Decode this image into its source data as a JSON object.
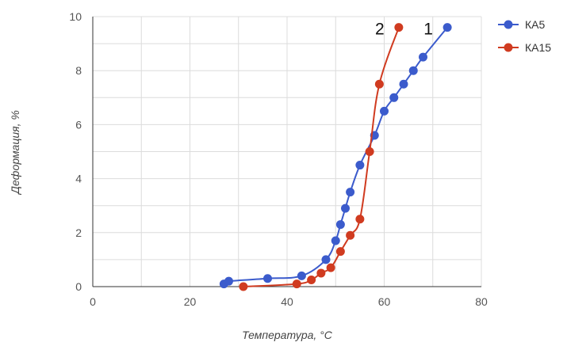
{
  "chart_data": {
    "type": "line",
    "xlabel": "Температура, °C",
    "ylabel": "Деформация, %",
    "xlim": [
      0,
      80
    ],
    "ylim": [
      0,
      10
    ],
    "xticks": [
      0,
      20,
      40,
      60,
      80
    ],
    "yticks": [
      0,
      2,
      4,
      6,
      8,
      10
    ],
    "grid": true,
    "legend_position": "top-right",
    "series": [
      {
        "name": "КА5",
        "color": "#3b5bcc",
        "annotation": "1",
        "points": [
          [
            27,
            0.1
          ],
          [
            28,
            0.2
          ],
          [
            36,
            0.3
          ],
          [
            43,
            0.4
          ],
          [
            48,
            1.0
          ],
          [
            50,
            1.7
          ],
          [
            51,
            2.3
          ],
          [
            52,
            2.9
          ],
          [
            53,
            3.5
          ],
          [
            55,
            4.5
          ],
          [
            58,
            5.6
          ],
          [
            60,
            6.5
          ],
          [
            62,
            7.0
          ],
          [
            64,
            7.5
          ],
          [
            66,
            8.0
          ],
          [
            68,
            8.5
          ],
          [
            73,
            9.6
          ]
        ]
      },
      {
        "name": "КА15",
        "color": "#d03b20",
        "annotation": "2",
        "points": [
          [
            31,
            0.0
          ],
          [
            42,
            0.1
          ],
          [
            45,
            0.25
          ],
          [
            47,
            0.5
          ],
          [
            49,
            0.7
          ],
          [
            51,
            1.3
          ],
          [
            53,
            1.9
          ],
          [
            55,
            2.5
          ],
          [
            57,
            5.0
          ],
          [
            59,
            7.5
          ],
          [
            63,
            9.6
          ]
        ]
      }
    ]
  }
}
